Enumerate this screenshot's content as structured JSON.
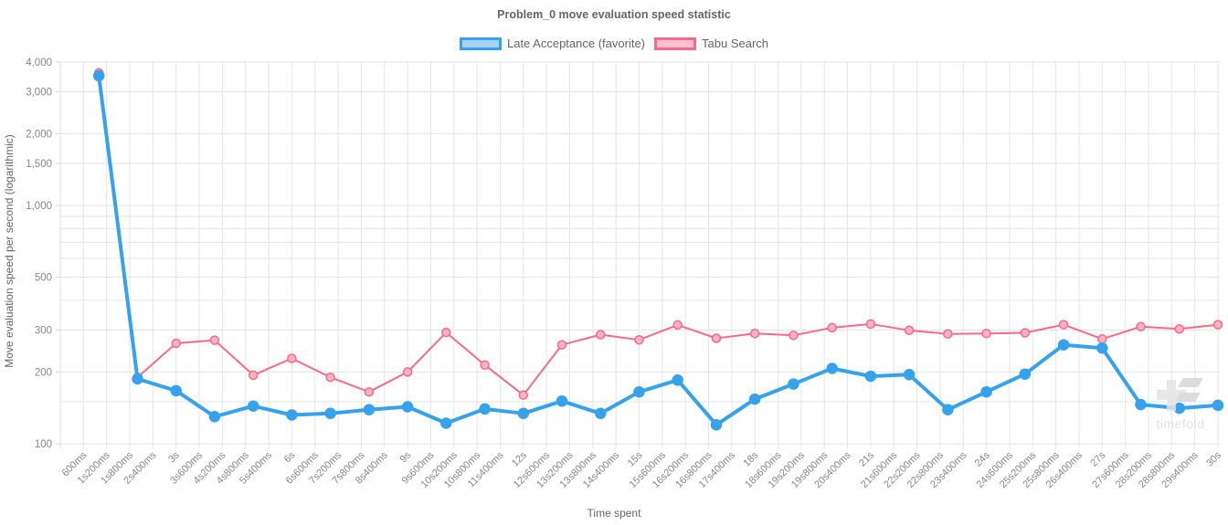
{
  "title": "Problem_0 move evaluation speed statistic",
  "legend": {
    "items": [
      {
        "label": "Late Acceptance (favorite)",
        "line_color": "#36a2eb",
        "fill_color": "#a8d3f4"
      },
      {
        "label": "Tabu Search",
        "line_color": "#f8698a",
        "fill_color": "#fbc0cd"
      }
    ]
  },
  "watermark": {
    "text": "timefold"
  },
  "chart_data": {
    "type": "line",
    "title": "Problem_0 move evaluation speed statistic",
    "xlabel": "Time spent",
    "ylabel": "Move evaluation speed per second (logarithmic)",
    "x_axis": {
      "scale": "linear-time",
      "min_ms": 0,
      "max_ms": 30000,
      "tick_interval_ms": 600,
      "ticks": [
        "600ms",
        "1s200ms",
        "1s800ms",
        "2s400ms",
        "3s",
        "3s600ms",
        "4s200ms",
        "4s800ms",
        "5s400ms",
        "6s",
        "6s600ms",
        "7s200ms",
        "7s800ms",
        "8s400ms",
        "9s",
        "9s600ms",
        "10s200ms",
        "10s800ms",
        "11s400ms",
        "12s",
        "12s600ms",
        "13s200ms",
        "13s800ms",
        "14s400ms",
        "15s",
        "15s600ms",
        "16s200ms",
        "16s800ms",
        "17s400ms",
        "18s",
        "18s600ms",
        "19s200ms",
        "19s800ms",
        "20s400ms",
        "21s",
        "21s600ms",
        "22s200ms",
        "22s800ms",
        "23s400ms",
        "24s",
        "24s600ms",
        "25s200ms",
        "25s800ms",
        "26s400ms",
        "27s",
        "27s600ms",
        "28s200ms",
        "28s800ms",
        "29s400ms",
        "30s"
      ]
    },
    "y_axis": {
      "scale": "log",
      "min": 100,
      "max": 4000,
      "ticks": [
        {
          "value": 4000,
          "label": "4,000"
        },
        {
          "value": 3000,
          "label": "3,000"
        },
        {
          "value": 2000,
          "label": "2,000"
        },
        {
          "value": 1500,
          "label": "1,500"
        },
        {
          "value": 1000,
          "label": "1,000"
        },
        {
          "value": 500,
          "label": "500"
        },
        {
          "value": 300,
          "label": "300"
        },
        {
          "value": 200,
          "label": "200"
        },
        {
          "value": 100,
          "label": "100"
        }
      ],
      "gridlines": [
        100,
        150,
        200,
        300,
        400,
        500,
        600,
        700,
        800,
        900,
        1000,
        1500,
        2000,
        3000,
        4000
      ]
    },
    "series": [
      {
        "name": "Tabu Search",
        "line_color": "#f8698a",
        "point_fill": "#f9b3c3",
        "line_width": 2,
        "point_radius": 4.5,
        "x_s": [
          1,
          2,
          3,
          4,
          5,
          6,
          7,
          8,
          9,
          10,
          11,
          12,
          13,
          14,
          15,
          16,
          17,
          18,
          19,
          20,
          21,
          22,
          23,
          24,
          25,
          26,
          27,
          28,
          29,
          30
        ],
        "values": [
          3600,
          190,
          264,
          272,
          194,
          228,
          190,
          165,
          200,
          293,
          214,
          160,
          260,
          287,
          273,
          315,
          277,
          290,
          285,
          307,
          318,
          299,
          289,
          290,
          292,
          316,
          275,
          310,
          303,
          316
        ]
      },
      {
        "name": "Late Acceptance (favorite)",
        "line_color": "#36a2eb",
        "point_fill": "#36a2eb",
        "line_width": 4,
        "point_radius": 5.5,
        "x_s": [
          1,
          2,
          3,
          4,
          5,
          6,
          7,
          8,
          9,
          10,
          11,
          12,
          13,
          14,
          15,
          16,
          17,
          18,
          19,
          20,
          21,
          22,
          23,
          24,
          25,
          26,
          27,
          28,
          29,
          30
        ],
        "values": [
          3500,
          187,
          167,
          130,
          144,
          132,
          134,
          139,
          143,
          122,
          140,
          134,
          151,
          134,
          165,
          185,
          120,
          154,
          178,
          207,
          192,
          195,
          139,
          165,
          196,
          260,
          252,
          146,
          141,
          145
        ]
      }
    ]
  }
}
